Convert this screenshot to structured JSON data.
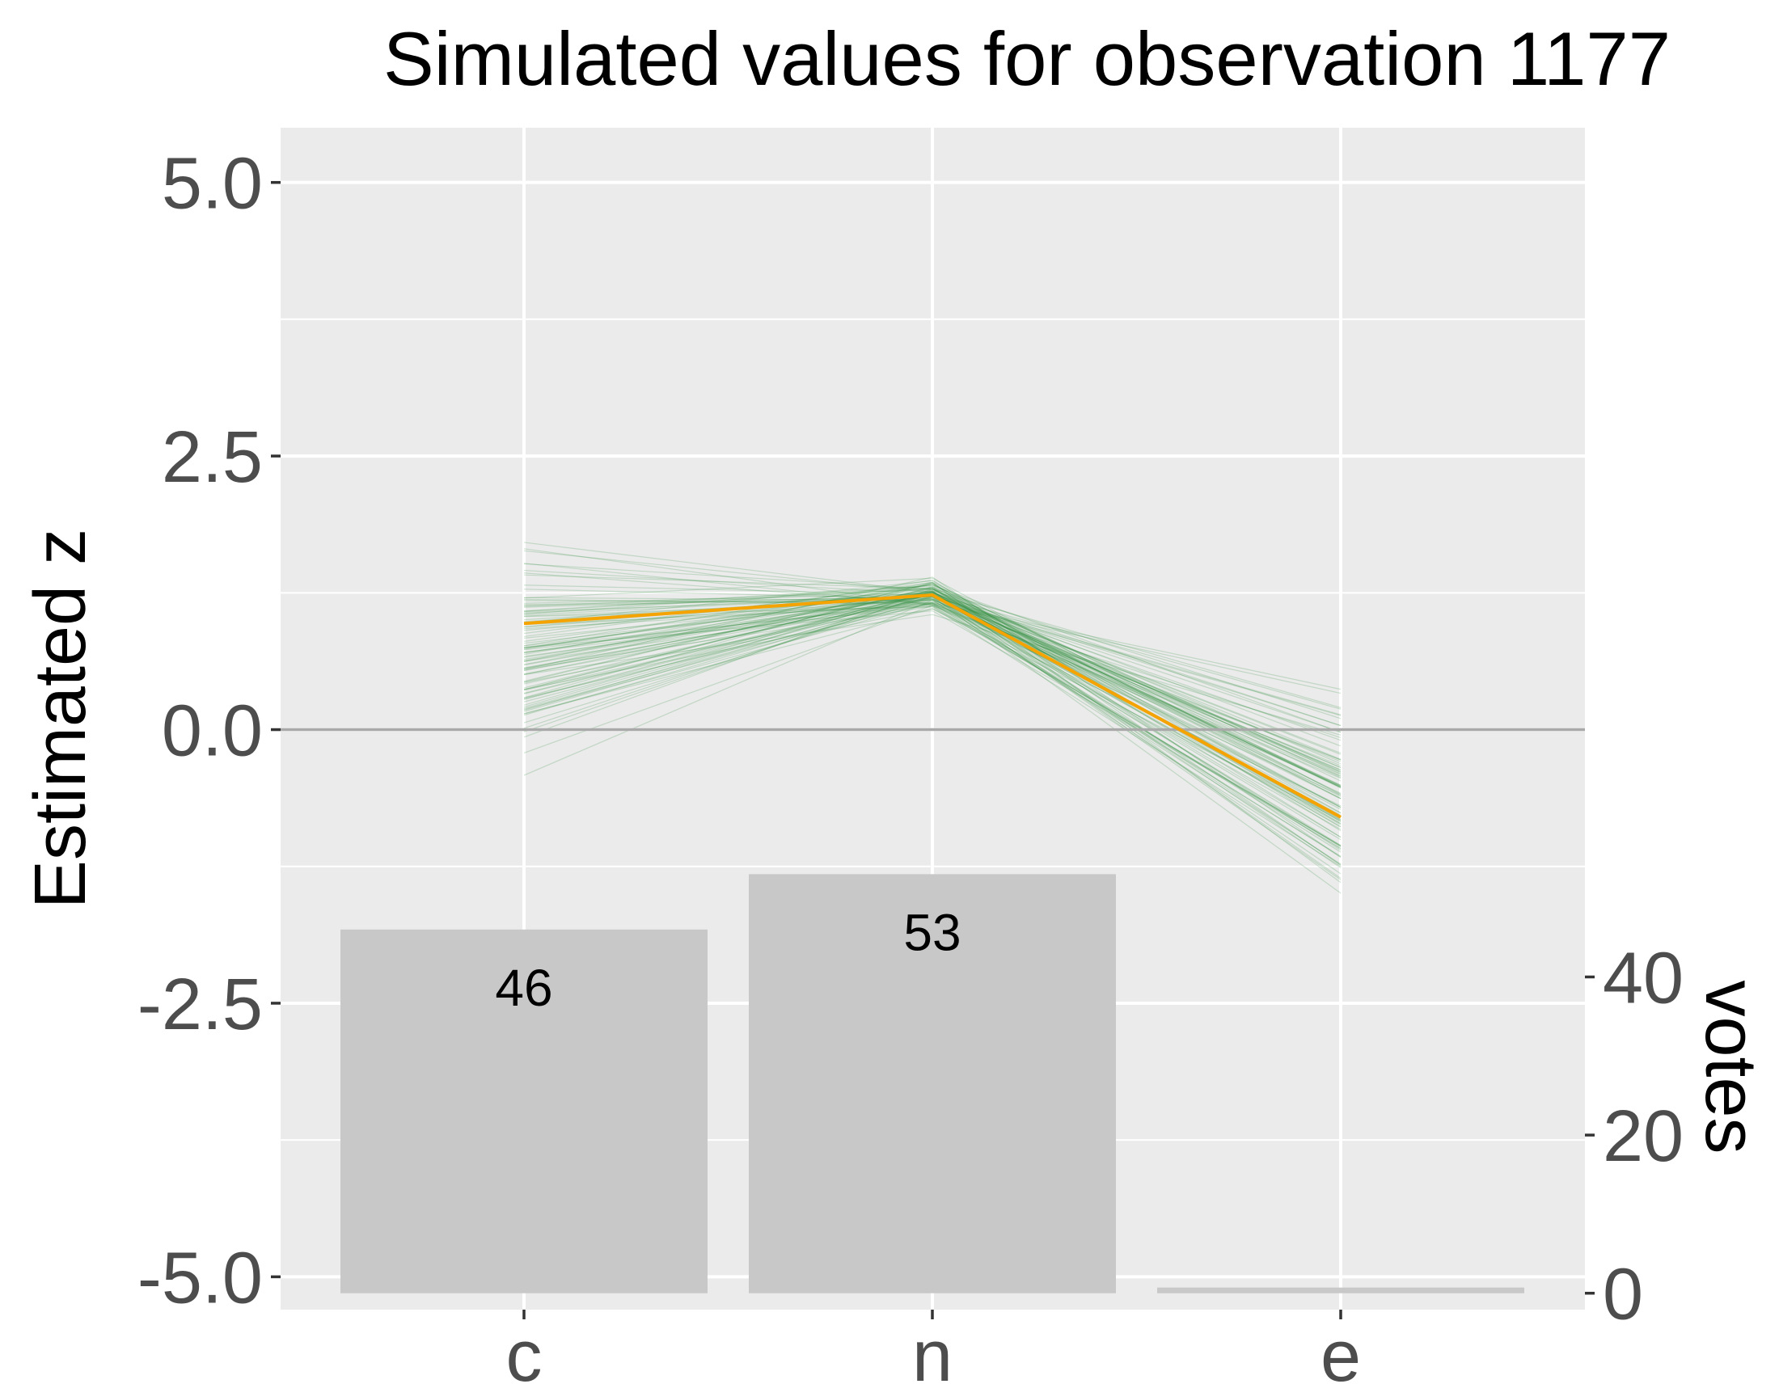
{
  "chart_data": {
    "type": "line",
    "title": "Simulated values for observation 1177",
    "ylabel": "Estimated z",
    "y2label": "votes",
    "categories": [
      "c",
      "n",
      "e"
    ],
    "ylim": [
      -5.3,
      5.5
    ],
    "y_ticks": [
      5.0,
      2.5,
      0.0,
      -2.5,
      -5.0
    ],
    "y_tick_labels": [
      "5.0",
      "2.5",
      "0.0",
      "-2.5",
      "-5.0"
    ],
    "y2_ticks": [
      0,
      20,
      40
    ],
    "y2_tick_labels": [
      "0",
      "20",
      "40"
    ],
    "reference_line_y": 0.0,
    "mean_line": {
      "values": [
        0.97,
        1.23,
        -0.8
      ],
      "color": "#f5a300"
    },
    "simulation_lines": {
      "count": 100,
      "color": "#2e8b3a",
      "c_range": [
        -0.8,
        2.2
      ],
      "n_range": [
        1.0,
        1.45
      ],
      "e_range": [
        -2.1,
        0.85
      ]
    },
    "bars": {
      "series_label": "votes",
      "values": [
        46,
        53,
        0
      ],
      "labels": [
        "46",
        "53",
        ""
      ],
      "color": "#c8c8c8"
    },
    "grid": true,
    "panel_background": "#ebebeb",
    "grid_color": "#ffffff"
  }
}
